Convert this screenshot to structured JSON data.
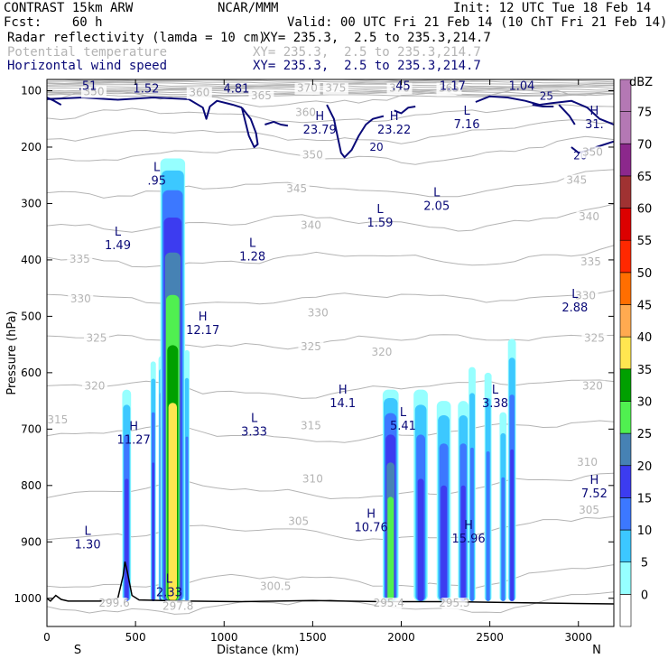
{
  "header": {
    "model": "CONTRAST 15km ARW",
    "org": "NCAR/MMM",
    "init": "Init: 12 UTC Tue 18 Feb 14",
    "fcst": "Fcst:    60 h",
    "valid": "Valid: 00 UTC Fri 21 Feb 14 (10 ChT Fri 21 Feb 14)",
    "field1_name": "Radar reflectivity (lamda = 10 cm)",
    "field1_xy": "XY= 235.3,  2.5 to 235.3,214.7",
    "field2_name": "Potential temperature",
    "field2_xy": "XY= 235.3,  2.5 to 235.3,214.7",
    "field3_name": "Horizontal wind speed",
    "field3_xy": "XY= 235.3,  2.5 to 235.3,214.7"
  },
  "colors": {
    "theta": "#b4b4b4",
    "wind": "#0a0a78",
    "terrain": "#000000",
    "scale": [
      "#ffffff",
      "#96ffff",
      "#3cc8ff",
      "#3c78ff",
      "#3c3cf0",
      "#4682b4",
      "#50f050",
      "#00a000",
      "#ffe650",
      "#ffaa50",
      "#ff6e00",
      "#ff2800",
      "#dc0000",
      "#a03232",
      "#8c288c",
      "#b478b4"
    ]
  },
  "chart_data": {
    "type": "cross-section",
    "xlabel": "Distance (km)",
    "ylabel": "Pressure (hPa)",
    "xlim": [
      0,
      3200
    ],
    "ylim": [
      1050,
      80
    ],
    "x_ticks": [
      0,
      500,
      1000,
      1500,
      2000,
      2500,
      3000
    ],
    "y_ticks": [
      100,
      200,
      300,
      400,
      500,
      600,
      700,
      800,
      900,
      1000
    ],
    "direction_left": "S",
    "direction_right": "N",
    "colorbar": {
      "unit": "dBZ",
      "levels": [
        "0",
        "5",
        "10",
        "15",
        "20",
        "25",
        "30",
        "35",
        "40",
        "45",
        "50",
        "55",
        "60",
        "65",
        "70",
        "75"
      ]
    },
    "theta_contours": [
      {
        "value": 295,
        "p": 1015
      },
      {
        "value": 300,
        "p": 970
      },
      {
        "value": 305,
        "p": 885
      },
      {
        "value": 310,
        "p": 810
      },
      {
        "value": 315,
        "p": 710
      },
      {
        "value": 320,
        "p": 630
      },
      {
        "value": 325,
        "p": 545
      },
      {
        "value": 330,
        "p": 470
      },
      {
        "value": 335,
        "p": 400
      },
      {
        "value": 340,
        "p": 335
      },
      {
        "value": 345,
        "p": 275
      },
      {
        "value": 350,
        "p": 215
      },
      {
        "value": 355,
        "p": 180
      },
      {
        "value": 360,
        "p": 145
      },
      {
        "value": 365,
        "p": 115
      }
    ],
    "theta_labels": [
      {
        "text": "315",
        "x": 60,
        "p": 690
      },
      {
        "text": "320",
        "x": 270,
        "p": 630
      },
      {
        "text": "325",
        "x": 280,
        "p": 545
      },
      {
        "text": "330",
        "x": 190,
        "p": 475
      },
      {
        "text": "335",
        "x": 185,
        "p": 405
      },
      {
        "text": "340",
        "x": 1490,
        "p": 345
      },
      {
        "text": "345",
        "x": 1410,
        "p": 280
      },
      {
        "text": "350",
        "x": 1500,
        "p": 220
      },
      {
        "text": "315",
        "x": 1490,
        "p": 700
      },
      {
        "text": "310",
        "x": 1500,
        "p": 795
      },
      {
        "text": "305",
        "x": 1420,
        "p": 870
      },
      {
        "text": "300.5",
        "x": 1290,
        "p": 985
      },
      {
        "text": "360",
        "x": 1460,
        "p": 145
      },
      {
        "text": "365",
        "x": 1210,
        "p": 115
      },
      {
        "text": "370",
        "x": 1470,
        "p": 102
      },
      {
        "text": "375",
        "x": 1630,
        "p": 102
      },
      {
        "text": "370",
        "x": 1990,
        "p": 102
      },
      {
        "text": "365",
        "x": 2270,
        "p": 102
      },
      {
        "text": "360",
        "x": 860,
        "p": 110
      },
      {
        "text": "350",
        "x": 265,
        "p": 108
      },
      {
        "text": "330",
        "x": 1530,
        "p": 500
      },
      {
        "text": "325",
        "x": 1490,
        "p": 560
      },
      {
        "text": "320",
        "x": 1890,
        "p": 570
      },
      {
        "text": "325",
        "x": 3090,
        "p": 545
      },
      {
        "text": "330",
        "x": 3040,
        "p": 470
      },
      {
        "text": "335",
        "x": 3070,
        "p": 410
      },
      {
        "text": "340",
        "x": 3060,
        "p": 330
      },
      {
        "text": "345",
        "x": 2990,
        "p": 265
      },
      {
        "text": "350",
        "x": 3080,
        "p": 215
      },
      {
        "text": "320",
        "x": 3080,
        "p": 630
      },
      {
        "text": "310",
        "x": 3050,
        "p": 765
      },
      {
        "text": "305",
        "x": 3060,
        "p": 850
      },
      {
        "text": "295.4",
        "x": 1930,
        "p": 1015
      },
      {
        "text": "295.3",
        "x": 2300,
        "p": 1015
      },
      {
        "text": "299.6",
        "x": 380,
        "p": 1015
      },
      {
        "text": "297.8",
        "x": 740,
        "p": 1020
      }
    ],
    "wind_labels": [
      {
        "text": "20",
        "x": 1860,
        "p": 200
      },
      {
        "text": "25",
        "x": 2820,
        "p": 110
      },
      {
        "text": "20",
        "x": 3010,
        "p": 215
      }
    ],
    "hl_markers": [
      {
        "letter": "L",
        "value": ".51",
        "x": 230,
        "p": 87
      },
      {
        "letter": "L",
        "value": "1.52",
        "x": 560,
        "p": 92
      },
      {
        "letter": "H",
        "value": "4.81",
        "x": 1070,
        "p": 92
      },
      {
        "letter": "L",
        "value": ".45",
        "x": 2000,
        "p": 87
      },
      {
        "letter": "L",
        "value": "1.17",
        "x": 2290,
        "p": 87
      },
      {
        "letter": "L",
        "value": "1.04",
        "x": 2680,
        "p": 87
      },
      {
        "letter": "H",
        "value": "23.79",
        "x": 1540,
        "p": 165
      },
      {
        "letter": "H",
        "value": "23.22",
        "x": 1960,
        "p": 165
      },
      {
        "letter": "L",
        "value": "7.16",
        "x": 2370,
        "p": 155
      },
      {
        "letter": "H",
        "value": "31.",
        "x": 3090,
        "p": 155
      },
      {
        "letter": "L",
        "value": ".95",
        "x": 620,
        "p": 255
      },
      {
        "letter": "L",
        "value": "2.05",
        "x": 2200,
        "p": 300
      },
      {
        "letter": "L",
        "value": "1.59",
        "x": 1880,
        "p": 330
      },
      {
        "letter": "L",
        "value": "1.49",
        "x": 400,
        "p": 370
      },
      {
        "letter": "L",
        "value": "1.28",
        "x": 1160,
        "p": 390
      },
      {
        "letter": "L",
        "value": "2.88",
        "x": 2980,
        "p": 480
      },
      {
        "letter": "H",
        "value": "12.17",
        "x": 880,
        "p": 520
      },
      {
        "letter": "H",
        "value": "14.1",
        "x": 1670,
        "p": 650
      },
      {
        "letter": "L",
        "value": "3.38",
        "x": 2530,
        "p": 650
      },
      {
        "letter": "L",
        "value": "5.41",
        "x": 2010,
        "p": 690
      },
      {
        "letter": "H",
        "value": "11.27",
        "x": 490,
        "p": 715
      },
      {
        "letter": "L",
        "value": "3.33",
        "x": 1170,
        "p": 700
      },
      {
        "letter": "H",
        "value": "7.52",
        "x": 3090,
        "p": 810
      },
      {
        "letter": "H",
        "value": "10.76",
        "x": 1830,
        "p": 870
      },
      {
        "letter": "H",
        "value": "15.96",
        "x": 2380,
        "p": 890
      },
      {
        "letter": "L",
        "value": "1.30",
        "x": 230,
        "p": 900
      },
      {
        "letter": "L",
        "value": "2.33",
        "x": 690,
        "p": 985
      }
    ],
    "reflectivity_cells": [
      {
        "x_center": 450,
        "width": 50,
        "top_p": 630,
        "base_p": 1005,
        "max_dbz": 20
      },
      {
        "x_center": 600,
        "width": 30,
        "top_p": 580,
        "base_p": 1005,
        "max_dbz": 20
      },
      {
        "x_center": 650,
        "width": 40,
        "top_p": 570,
        "base_p": 1005,
        "max_dbz": 25
      },
      {
        "x_center": 710,
        "width": 140,
        "top_p": 220,
        "base_p": 1005,
        "max_dbz": 40
      },
      {
        "x_center": 790,
        "width": 30,
        "top_p": 560,
        "base_p": 1005,
        "max_dbz": 15
      },
      {
        "x_center": 1940,
        "width": 90,
        "top_p": 630,
        "base_p": 1005,
        "max_dbz": 30
      },
      {
        "x_center": 2110,
        "width": 80,
        "top_p": 630,
        "base_p": 1005,
        "max_dbz": 20
      },
      {
        "x_center": 2240,
        "width": 80,
        "top_p": 650,
        "base_p": 1005,
        "max_dbz": 20
      },
      {
        "x_center": 2350,
        "width": 60,
        "top_p": 650,
        "base_p": 1005,
        "max_dbz": 20
      },
      {
        "x_center": 2400,
        "width": 40,
        "top_p": 590,
        "base_p": 1005,
        "max_dbz": 15
      },
      {
        "x_center": 2490,
        "width": 40,
        "top_p": 600,
        "base_p": 1005,
        "max_dbz": 15
      },
      {
        "x_center": 2575,
        "width": 40,
        "top_p": 670,
        "base_p": 1005,
        "max_dbz": 15
      },
      {
        "x_center": 2625,
        "width": 45,
        "top_p": 540,
        "base_p": 1005,
        "max_dbz": 20
      }
    ],
    "terrain": [
      [
        0,
        1000
      ],
      [
        20,
        1005
      ],
      [
        50,
        995
      ],
      [
        80,
        1002
      ],
      [
        120,
        1005
      ],
      [
        300,
        1005
      ],
      [
        400,
        1000
      ],
      [
        430,
        960
      ],
      [
        440,
        935
      ],
      [
        455,
        955
      ],
      [
        480,
        995
      ],
      [
        520,
        1003
      ],
      [
        800,
        1005
      ],
      [
        1100,
        1006
      ],
      [
        1500,
        1004
      ],
      [
        1900,
        1006
      ],
      [
        2300,
        1006
      ],
      [
        2700,
        1008
      ],
      [
        3200,
        1010
      ]
    ]
  }
}
